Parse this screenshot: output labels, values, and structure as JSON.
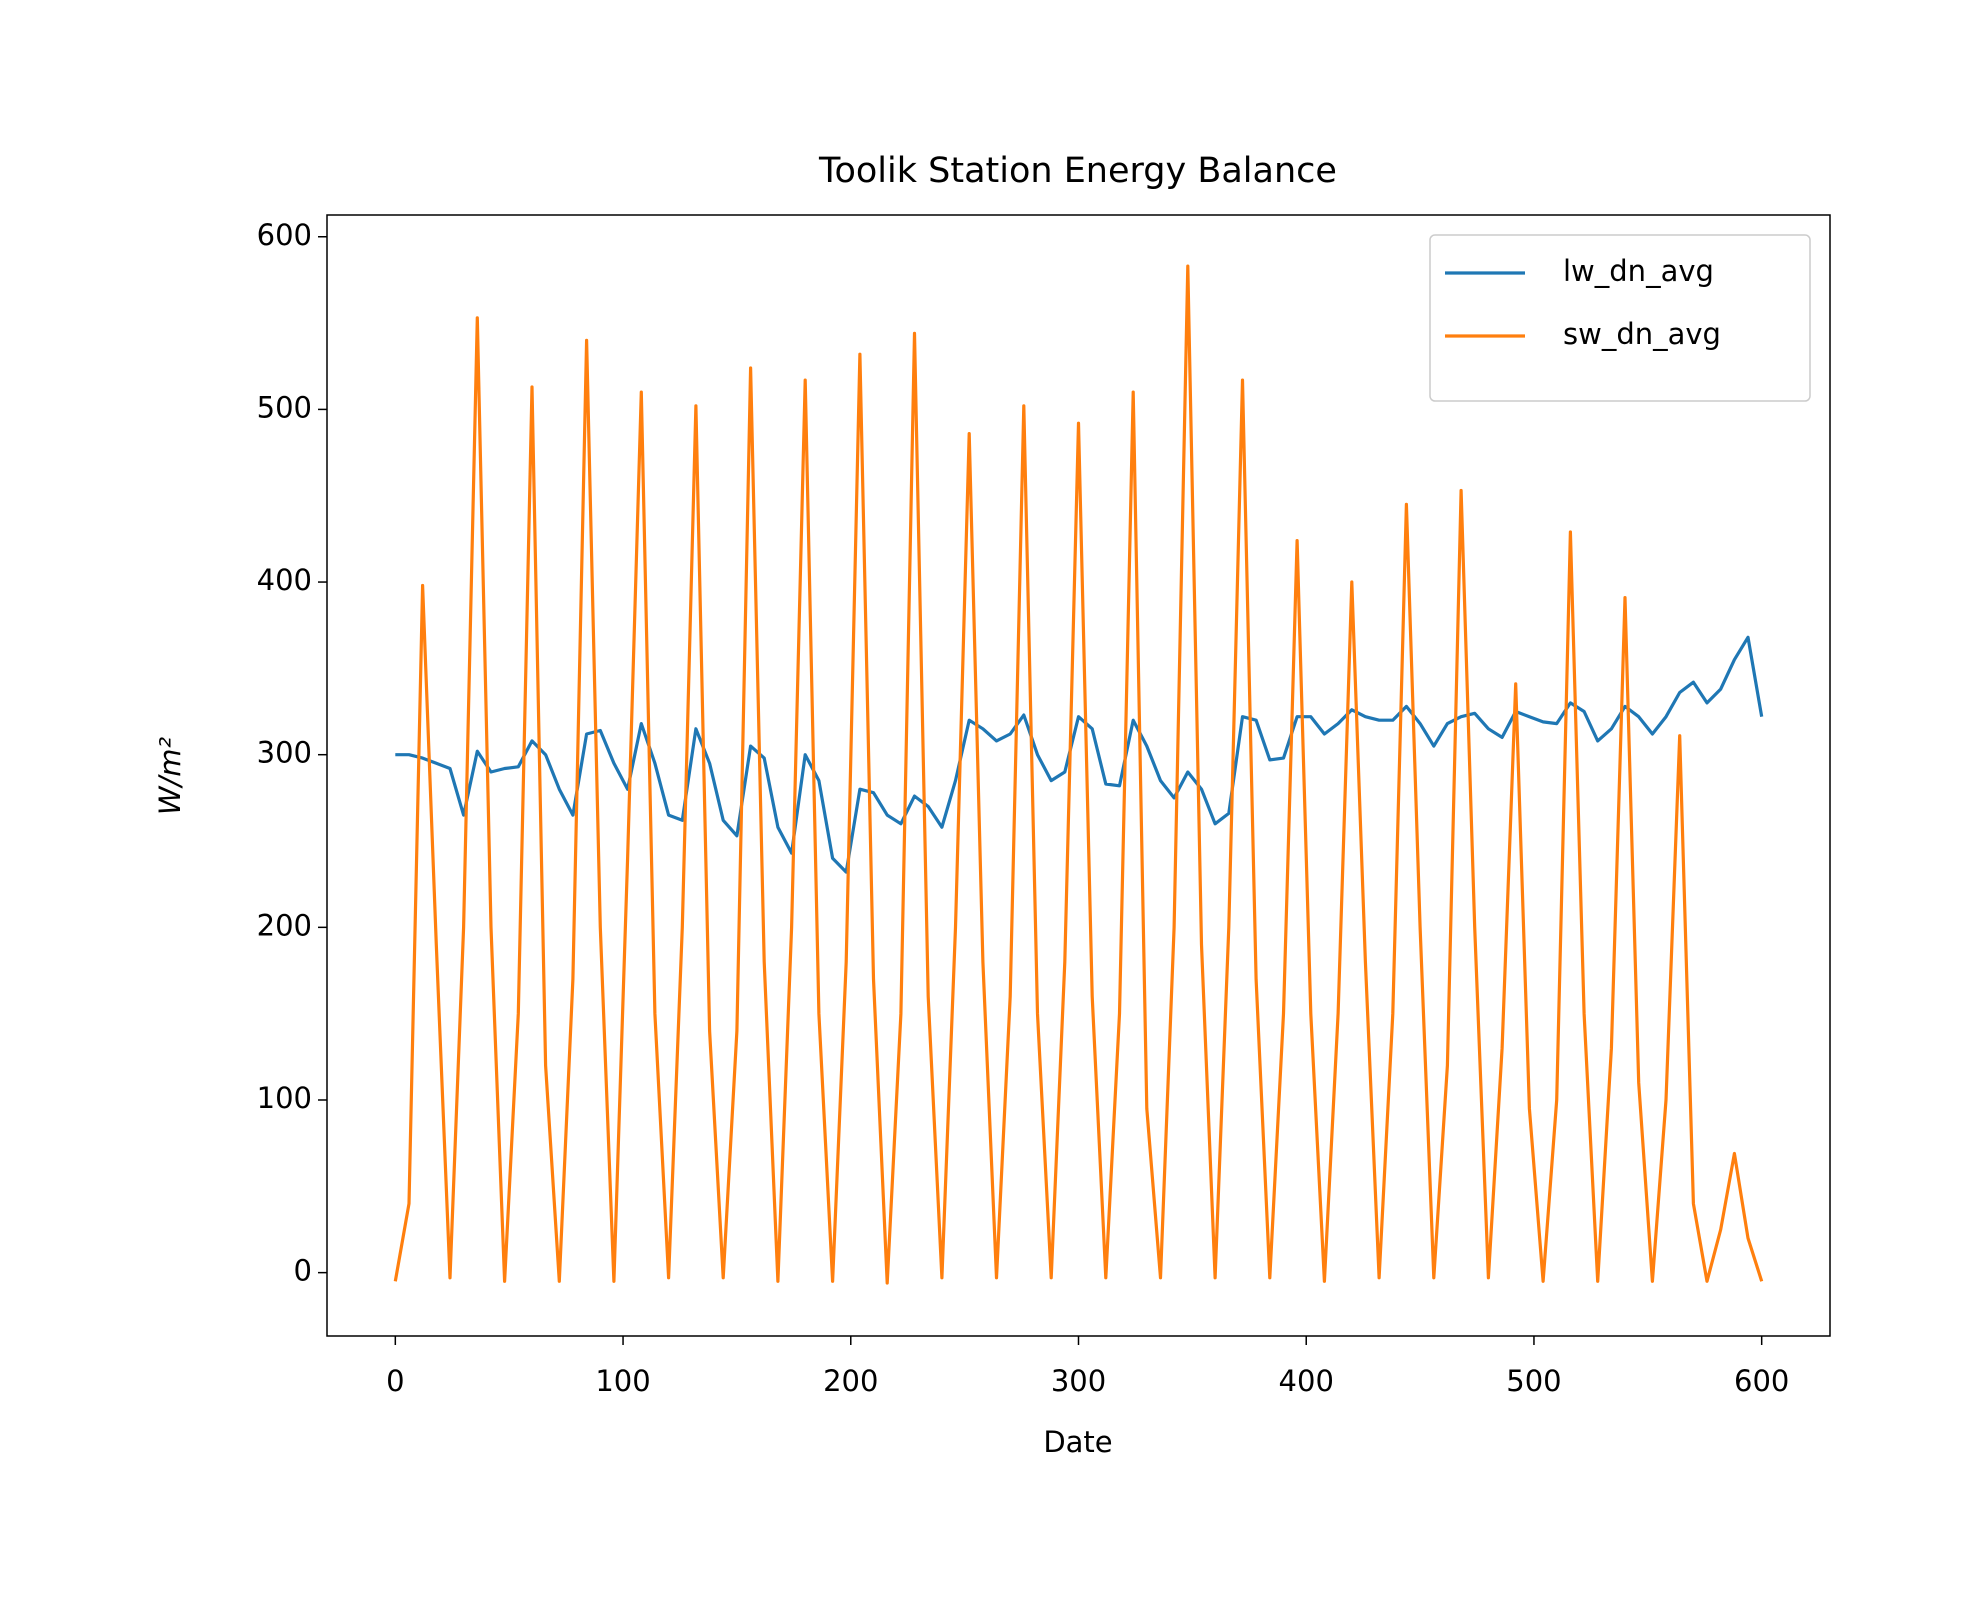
{
  "chart_data": {
    "type": "line",
    "title": "Toolik Station Energy Balance",
    "x_label": "Date",
    "y_label": "W/m²",
    "xlim": [
      -30,
      630
    ],
    "ylim": [
      -36.7,
      612.6
    ],
    "xticks": [
      0,
      100,
      200,
      300,
      400,
      500,
      600
    ],
    "yticks": [
      0,
      100,
      200,
      300,
      400,
      500,
      600
    ],
    "legend": "upper right",
    "x": [
      0,
      6,
      12,
      18,
      24,
      30,
      36,
      42,
      48,
      54,
      60,
      66,
      72,
      78,
      84,
      90,
      96,
      102,
      108,
      114,
      120,
      126,
      132,
      138,
      144,
      150,
      156,
      162,
      168,
      174,
      180,
      186,
      192,
      198,
      204,
      210,
      216,
      222,
      228,
      234,
      240,
      246,
      252,
      258,
      264,
      270,
      276,
      282,
      288,
      294,
      300,
      306,
      312,
      318,
      324,
      330,
      336,
      342,
      348,
      354,
      360,
      366,
      372,
      378,
      384,
      390,
      396,
      402,
      408,
      414,
      420,
      426,
      432,
      438,
      444,
      450,
      456,
      462,
      468,
      474,
      480,
      486,
      492,
      498,
      504,
      510,
      516,
      522,
      528,
      534,
      540,
      546,
      552,
      558,
      564,
      570,
      576,
      582,
      588,
      594,
      600
    ],
    "series": [
      {
        "name": "lw_dn_avg",
        "color": "#1f77b4",
        "values": [
          300,
          300,
          298,
          295,
          292,
          265,
          302,
          290,
          292,
          293,
          308,
          300,
          280,
          265,
          312,
          314,
          295,
          280,
          318,
          295,
          265,
          262,
          315,
          295,
          262,
          253,
          305,
          298,
          258,
          243,
          300,
          285,
          240,
          232,
          280,
          278,
          265,
          260,
          276,
          270,
          258,
          285,
          320,
          315,
          308,
          312,
          323,
          300,
          285,
          290,
          322,
          315,
          283,
          282,
          320,
          305,
          285,
          275,
          290,
          280,
          260,
          266,
          322,
          320,
          297,
          298,
          322,
          322,
          312,
          318,
          326,
          322,
          320,
          320,
          328,
          318,
          305,
          318,
          322,
          324,
          315,
          310,
          325,
          322,
          319,
          318,
          330,
          325,
          308,
          315,
          328,
          322,
          312,
          322,
          336,
          342,
          330,
          338,
          355,
          368,
          322
        ]
      },
      {
        "name": "sw_dn_avg",
        "color": "#ff7f0e",
        "values": [
          -5,
          40,
          398,
          190,
          -3,
          200,
          553,
          200,
          -5,
          150,
          513,
          120,
          -5,
          170,
          540,
          200,
          -5,
          240,
          510,
          150,
          -3,
          200,
          502,
          140,
          -3,
          140,
          524,
          180,
          -5,
          200,
          517,
          150,
          -5,
          180,
          532,
          170,
          -6,
          150,
          544,
          160,
          -3,
          200,
          486,
          180,
          -3,
          160,
          502,
          150,
          -3,
          180,
          492,
          160,
          -3,
          150,
          510,
          95,
          -3,
          200,
          583,
          190,
          -3,
          200,
          517,
          170,
          -3,
          150,
          424,
          150,
          -5,
          150,
          400,
          180,
          -3,
          150,
          445,
          200,
          -3,
          120,
          453,
          200,
          -3,
          130,
          341,
          95,
          -5,
          100,
          429,
          150,
          -5,
          130,
          391,
          110,
          -5,
          100,
          311,
          40,
          -5,
          25,
          69,
          20,
          -5
        ]
      }
    ]
  }
}
